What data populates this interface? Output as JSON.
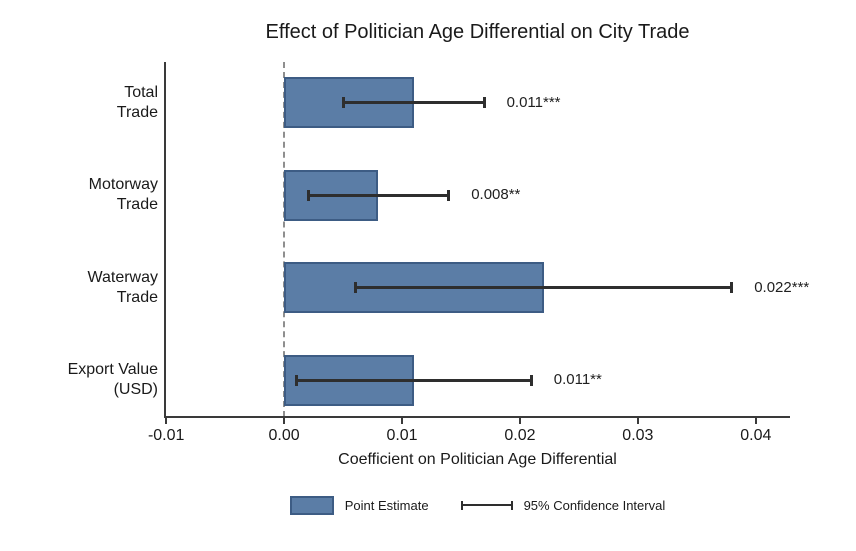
{
  "chart_data": {
    "type": "bar",
    "orientation": "horizontal",
    "title": "Effect of Politician Age Differential on City Trade",
    "xlabel": "Coefficient on Politician Age Differential",
    "xlim": [
      -0.0101,
      0.0429
    ],
    "grid": false,
    "zero_reference_line": 0,
    "x_ticks": [
      {
        "value": -0.01,
        "label": "-0.01"
      },
      {
        "value": 0.0,
        "label": "0.00"
      },
      {
        "value": 0.01,
        "label": "0.01"
      },
      {
        "value": 0.02,
        "label": "0.02"
      },
      {
        "value": 0.03,
        "label": "0.03"
      },
      {
        "value": 0.04,
        "label": "0.04"
      }
    ],
    "rows": [
      {
        "category_lines": [
          "Total",
          "Trade"
        ],
        "value": 0.011,
        "ci_low": 0.005,
        "ci_high": 0.017,
        "estimate_label": "0.011***"
      },
      {
        "category_lines": [
          "Motorway",
          "Trade"
        ],
        "value": 0.008,
        "ci_low": 0.002,
        "ci_high": 0.014,
        "estimate_label": "0.008**"
      },
      {
        "category_lines": [
          "Waterway",
          "Trade"
        ],
        "value": 0.022,
        "ci_low": 0.006,
        "ci_high": 0.038,
        "estimate_label": "0.022***"
      },
      {
        "category_lines": [
          "Export Value",
          "(USD)"
        ],
        "value": 0.011,
        "ci_low": 0.001,
        "ci_high": 0.021,
        "estimate_label": "0.011**"
      }
    ],
    "legend": [
      {
        "label": "Point Estimate",
        "type": "bar"
      },
      {
        "label": "95% Confidence Interval",
        "type": "ci"
      }
    ],
    "colors": {
      "bar_fill": "#5b7da6",
      "bar_border": "#3d5c84",
      "ci": "#2e2e2e",
      "axis": "#3a3a3a",
      "zero_line": "#8f8f8f",
      "text": "#1a1a1a"
    }
  }
}
